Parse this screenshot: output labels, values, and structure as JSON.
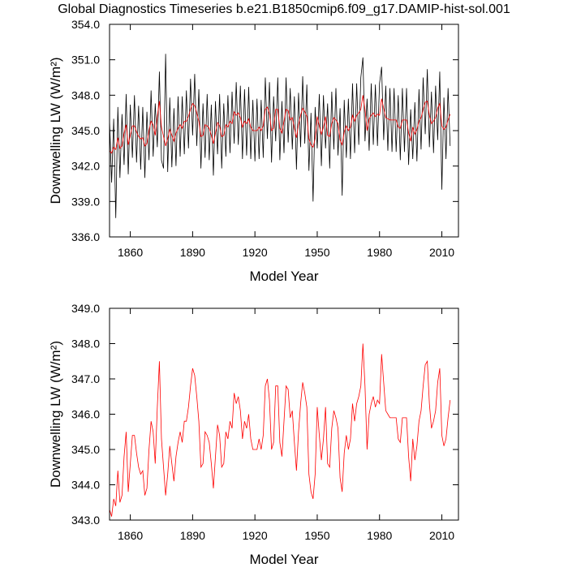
{
  "chart_data": [
    {
      "type": "line",
      "title": "Global Diagnostics Timeseries b.e21.B1850cmip6.f09_g17.DAMIP-hist-sol.001",
      "xlabel": "Model Year",
      "ylabel": "Downwelling LW (W/m²)",
      "xlim": [
        1850,
        2018
      ],
      "xticks": [
        1860,
        1890,
        1920,
        1950,
        1980,
        2010
      ],
      "ylim": [
        336,
        354
      ],
      "yticks": [
        {
          "value": 336,
          "label": "336.0"
        },
        {
          "value": 339,
          "label": "339.0"
        },
        {
          "value": 342,
          "label": "342.0"
        },
        {
          "value": 345,
          "label": "345.0"
        },
        {
          "value": 348,
          "label": "348.0"
        },
        {
          "value": 351,
          "label": "351.0"
        },
        {
          "value": 354,
          "label": "354.0"
        }
      ],
      "x": [
        1850,
        1851,
        1852,
        1853,
        1854,
        1855,
        1856,
        1857,
        1858,
        1859,
        1860,
        1861,
        1862,
        1863,
        1864,
        1865,
        1866,
        1867,
        1868,
        1869,
        1870,
        1871,
        1872,
        1873,
        1874,
        1875,
        1876,
        1877,
        1878,
        1879,
        1880,
        1881,
        1882,
        1883,
        1884,
        1885,
        1886,
        1887,
        1888,
        1889,
        1890,
        1891,
        1892,
        1893,
        1894,
        1895,
        1896,
        1897,
        1898,
        1899,
        1900,
        1901,
        1902,
        1903,
        1904,
        1905,
        1906,
        1907,
        1908,
        1909,
        1910,
        1911,
        1912,
        1913,
        1914,
        1915,
        1916,
        1917,
        1918,
        1919,
        1920,
        1921,
        1922,
        1923,
        1924,
        1925,
        1926,
        1927,
        1928,
        1929,
        1930,
        1931,
        1932,
        1933,
        1934,
        1935,
        1936,
        1937,
        1938,
        1939,
        1940,
        1941,
        1942,
        1943,
        1944,
        1945,
        1946,
        1947,
        1948,
        1949,
        1950,
        1951,
        1952,
        1953,
        1954,
        1955,
        1956,
        1957,
        1958,
        1959,
        1960,
        1961,
        1962,
        1963,
        1964,
        1965,
        1966,
        1967,
        1968,
        1969,
        1970,
        1971,
        1972,
        1973,
        1974,
        1975,
        1976,
        1977,
        1978,
        1979,
        1980,
        1981,
        1982,
        1983,
        1984,
        1985,
        1986,
        1987,
        1988,
        1989,
        1990,
        1991,
        1992,
        1993,
        1994,
        1995,
        1996,
        1997,
        1998,
        1999,
        2000,
        2001,
        2002,
        2003,
        2004,
        2005,
        2006,
        2007,
        2008,
        2009,
        2010,
        2011,
        2012,
        2013,
        2014
      ],
      "series": [
        {
          "color": "#000000",
          "values": [
            345.9,
            340.6,
            346.0,
            337.6,
            347.0,
            341.0,
            346.4,
            342.1,
            348.1,
            341.3,
            347.2,
            342.7,
            348.0,
            342.3,
            347.1,
            341.7,
            347.0,
            341.0,
            346.6,
            342.5,
            348.4,
            342.8,
            347.3,
            343.6,
            350.0,
            342.5,
            341.8,
            351.5,
            341.5,
            347.8,
            341.9,
            346.9,
            342.0,
            347.9,
            342.8,
            347.9,
            343.0,
            348.4,
            343.5,
            349.4,
            344.6,
            349.8,
            343.7,
            348.5,
            341.8,
            347.3,
            342.7,
            348.1,
            342.5,
            347.2,
            341.2,
            347.5,
            343.0,
            348.1,
            341.8,
            347.3,
            342.8,
            348.0,
            343.1,
            348.3,
            343.9,
            349.1,
            343.8,
            348.8,
            342.6,
            348.5,
            342.9,
            348.7,
            342.6,
            347.6,
            342.4,
            347.7,
            342.6,
            347.6,
            342.7,
            349.5,
            344.3,
            349.1,
            342.3,
            347.9,
            344.1,
            349.5,
            342.5,
            347.5,
            343.1,
            349.5,
            344.0,
            348.6,
            343.4,
            347.9,
            341.7,
            348.2,
            343.6,
            349.6,
            343.9,
            348.9,
            341.6,
            346.5,
            339.0,
            347.0,
            343.5,
            348.1,
            342.0,
            348.0,
            343.5,
            347.3,
            341.8,
            348.3,
            343.4,
            348.6,
            342.9,
            346.9,
            339.5,
            347.6,
            342.7,
            347.7,
            342.6,
            349.0,
            343.1,
            349.0,
            343.8,
            349.5,
            351.2,
            344.1,
            347.7,
            343.3,
            349.0,
            343.8,
            348.9,
            343.7,
            349.0,
            350.4,
            344.2,
            348.8,
            343.3,
            348.6,
            343.2,
            348.6,
            343.2,
            348.0,
            342.5,
            348.6,
            343.2,
            348.6,
            342.1,
            346.8,
            342.6,
            347.4,
            342.4,
            348.5,
            343.4,
            349.5,
            344.7,
            350.2,
            343.6,
            348.3,
            343.1,
            348.8,
            344.2,
            350.0,
            340.0,
            347.8,
            342.6,
            348.6,
            343.7
          ]
        },
        {
          "color": "#ff0000",
          "values": [
            343.3,
            343.1,
            343.6,
            343.4,
            344.4,
            343.5,
            343.7,
            344.8,
            345.5,
            343.8,
            344.6,
            345.4,
            345.4,
            344.9,
            344.5,
            344.3,
            344.4,
            343.7,
            343.9,
            345.0,
            345.8,
            345.5,
            344.6,
            346.2,
            347.5,
            345.3,
            344.5,
            343.7,
            344.3,
            345.1,
            344.6,
            344.1,
            344.8,
            345.2,
            345.5,
            345.2,
            345.8,
            345.8,
            346.2,
            346.8,
            347.3,
            347.1,
            346.5,
            345.8,
            344.5,
            344.6,
            345.5,
            345.4,
            345.2,
            344.6,
            343.9,
            344.8,
            345.7,
            345.4,
            344.5,
            344.6,
            345.5,
            345.3,
            345.8,
            345.6,
            346.6,
            346.3,
            346.5,
            346.1,
            345.3,
            345.8,
            345.6,
            346.0,
            345.3,
            345.0,
            345.0,
            345.0,
            345.3,
            345.0,
            345.4,
            346.8,
            347.0,
            346.4,
            345.0,
            345.2,
            346.8,
            346.8,
            345.2,
            344.8,
            345.8,
            346.8,
            346.7,
            345.9,
            346.1,
            345.2,
            344.4,
            345.5,
            346.3,
            346.9,
            346.6,
            346.2,
            344.3,
            343.8,
            343.6,
            344.3,
            346.2,
            345.4,
            344.7,
            345.3,
            346.2,
            344.6,
            344.5,
            345.6,
            346.1,
            345.9,
            345.6,
            344.2,
            343.8,
            344.9,
            345.4,
            345.0,
            345.3,
            346.3,
            345.8,
            346.3,
            346.5,
            346.8,
            348.0,
            346.8,
            345.0,
            346.0,
            346.3,
            346.5,
            346.2,
            346.4,
            346.3,
            347.7,
            346.9,
            346.1,
            346.0,
            345.9,
            345.9,
            345.9,
            345.9,
            345.3,
            345.2,
            345.9,
            345.9,
            345.9,
            344.8,
            344.1,
            345.3,
            344.7,
            345.1,
            345.8,
            346.1,
            346.8,
            347.4,
            347.5,
            346.3,
            345.6,
            345.8,
            346.1,
            346.9,
            347.3,
            345.4,
            345.1,
            345.3,
            345.9,
            346.4
          ]
        }
      ]
    },
    {
      "type": "line",
      "xlabel": "Model Year",
      "ylabel": "Downwelling LW (W/m²)",
      "xlim": [
        1850,
        2018
      ],
      "xticks": [
        1860,
        1890,
        1920,
        1950,
        1980,
        2010
      ],
      "ylim": [
        343,
        349
      ],
      "yticks": [
        {
          "value": 343,
          "label": "343.0"
        },
        {
          "value": 344,
          "label": "344.0"
        },
        {
          "value": 345,
          "label": "345.0"
        },
        {
          "value": 346,
          "label": "346.0"
        },
        {
          "value": 347,
          "label": "347.0"
        },
        {
          "value": 348,
          "label": "348.0"
        },
        {
          "value": 349,
          "label": "349.0"
        }
      ],
      "x": [
        1850,
        1851,
        1852,
        1853,
        1854,
        1855,
        1856,
        1857,
        1858,
        1859,
        1860,
        1861,
        1862,
        1863,
        1864,
        1865,
        1866,
        1867,
        1868,
        1869,
        1870,
        1871,
        1872,
        1873,
        1874,
        1875,
        1876,
        1877,
        1878,
        1879,
        1880,
        1881,
        1882,
        1883,
        1884,
        1885,
        1886,
        1887,
        1888,
        1889,
        1890,
        1891,
        1892,
        1893,
        1894,
        1895,
        1896,
        1897,
        1898,
        1899,
        1900,
        1901,
        1902,
        1903,
        1904,
        1905,
        1906,
        1907,
        1908,
        1909,
        1910,
        1911,
        1912,
        1913,
        1914,
        1915,
        1916,
        1917,
        1918,
        1919,
        1920,
        1921,
        1922,
        1923,
        1924,
        1925,
        1926,
        1927,
        1928,
        1929,
        1930,
        1931,
        1932,
        1933,
        1934,
        1935,
        1936,
        1937,
        1938,
        1939,
        1940,
        1941,
        1942,
        1943,
        1944,
        1945,
        1946,
        1947,
        1948,
        1949,
        1950,
        1951,
        1952,
        1953,
        1954,
        1955,
        1956,
        1957,
        1958,
        1959,
        1960,
        1961,
        1962,
        1963,
        1964,
        1965,
        1966,
        1967,
        1968,
        1969,
        1970,
        1971,
        1972,
        1973,
        1974,
        1975,
        1976,
        1977,
        1978,
        1979,
        1980,
        1981,
        1982,
        1983,
        1984,
        1985,
        1986,
        1987,
        1988,
        1989,
        1990,
        1991,
        1992,
        1993,
        1994,
        1995,
        1996,
        1997,
        1998,
        1999,
        2000,
        2001,
        2002,
        2003,
        2004,
        2005,
        2006,
        2007,
        2008,
        2009,
        2010,
        2011,
        2012,
        2013,
        2014
      ],
      "series": [
        {
          "color": "#ff0000",
          "values": [
            343.3,
            343.1,
            343.6,
            343.4,
            344.4,
            343.5,
            343.7,
            344.8,
            345.5,
            343.8,
            344.6,
            345.4,
            345.4,
            344.9,
            344.5,
            344.3,
            344.4,
            343.7,
            343.9,
            345.0,
            345.8,
            345.5,
            344.6,
            346.2,
            347.5,
            345.3,
            344.5,
            343.7,
            344.3,
            345.1,
            344.6,
            344.1,
            344.8,
            345.2,
            345.5,
            345.2,
            345.8,
            345.8,
            346.2,
            346.8,
            347.3,
            347.1,
            346.5,
            345.8,
            344.5,
            344.6,
            345.5,
            345.4,
            345.2,
            344.6,
            343.9,
            344.8,
            345.7,
            345.4,
            344.5,
            344.6,
            345.5,
            345.3,
            345.8,
            345.6,
            346.6,
            346.3,
            346.5,
            346.1,
            345.3,
            345.8,
            345.6,
            346.0,
            345.3,
            345.0,
            345.0,
            345.0,
            345.3,
            345.0,
            345.4,
            346.8,
            347.0,
            346.4,
            345.0,
            345.2,
            346.8,
            346.8,
            345.2,
            344.8,
            345.8,
            346.8,
            346.7,
            345.9,
            346.1,
            345.2,
            344.4,
            345.5,
            346.3,
            346.9,
            346.6,
            346.2,
            344.3,
            343.8,
            343.6,
            344.3,
            346.2,
            345.4,
            344.7,
            345.3,
            346.2,
            344.6,
            344.5,
            345.6,
            346.1,
            345.9,
            345.6,
            344.2,
            343.8,
            344.9,
            345.4,
            345.0,
            345.3,
            346.3,
            345.8,
            346.3,
            346.5,
            346.8,
            348.0,
            346.8,
            345.0,
            346.0,
            346.3,
            346.5,
            346.2,
            346.4,
            346.3,
            347.7,
            346.9,
            346.1,
            346.0,
            345.9,
            345.9,
            345.9,
            345.9,
            345.3,
            345.2,
            345.9,
            345.9,
            345.9,
            344.8,
            344.1,
            345.3,
            344.7,
            345.1,
            345.8,
            346.1,
            346.8,
            347.4,
            347.5,
            346.3,
            345.6,
            345.8,
            346.1,
            346.9,
            347.3,
            345.4,
            345.1,
            345.3,
            345.9,
            346.4
          ]
        }
      ]
    }
  ]
}
